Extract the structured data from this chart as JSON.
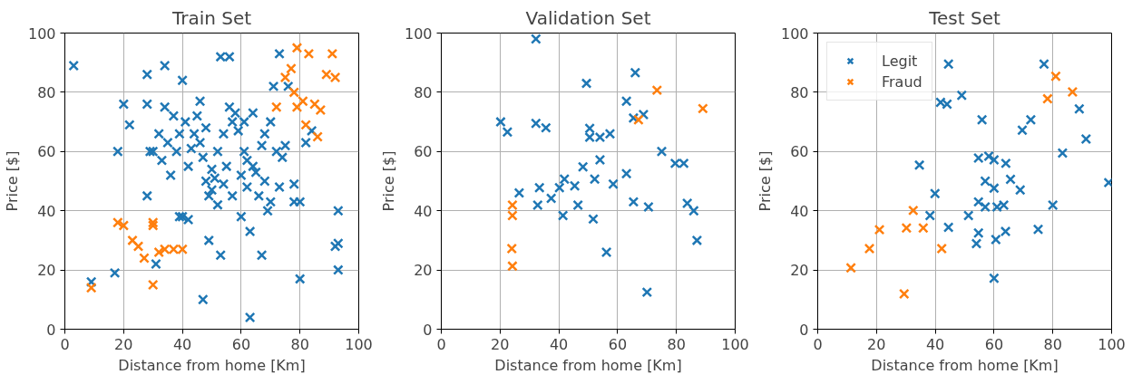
{
  "chart_data": [
    {
      "type": "scatter",
      "title": "Train Set",
      "xlabel": "Distance from home [Km]",
      "ylabel": "Price [$]",
      "xlim": [
        0,
        100
      ],
      "ylim": [
        0,
        100
      ],
      "xticks": [
        0,
        20,
        40,
        60,
        80,
        100
      ],
      "yticks": [
        0,
        20,
        40,
        60,
        80,
        100
      ],
      "grid": true,
      "marker": "cross",
      "series": [
        {
          "color": "#1f77b4",
          "x": [
            3,
            9,
            17,
            18,
            20,
            22,
            28,
            28,
            28,
            29,
            30,
            31,
            32,
            33,
            34,
            34,
            35,
            36,
            37,
            38,
            39,
            39,
            40,
            40,
            41,
            42,
            42,
            43,
            44,
            45,
            46,
            46,
            47,
            47,
            48,
            48,
            49,
            49,
            50,
            50,
            51,
            52,
            52,
            53,
            53,
            54,
            54,
            55,
            56,
            56,
            57,
            57,
            58,
            59,
            60,
            60,
            61,
            61,
            62,
            62,
            63,
            63,
            64,
            64,
            65,
            66,
            67,
            67,
            68,
            68,
            69,
            70,
            70,
            71,
            72,
            73,
            73,
            74,
            75,
            76,
            78,
            78,
            80,
            80,
            82,
            84,
            86,
            92,
            93,
            93,
            93
          ],
          "values": [
            89,
            16,
            19,
            60,
            76,
            69,
            86,
            76,
            45,
            60,
            60,
            22,
            66,
            57,
            89,
            75,
            63,
            52,
            72,
            60,
            66,
            38,
            38,
            84,
            70,
            55,
            37,
            61,
            66,
            72,
            77,
            63,
            58,
            10,
            68,
            50,
            45,
            30,
            54,
            47,
            51,
            60,
            42,
            92,
            25,
            49,
            66,
            55,
            92,
            75,
            70,
            45,
            73,
            67,
            38,
            52,
            70,
            60,
            48,
            57,
            33,
            4,
            55,
            73,
            53,
            45,
            25,
            62,
            50,
            66,
            40,
            70,
            43,
            82,
            60,
            48,
            93,
            58,
            62,
            82,
            43,
            49,
            17,
            43,
            63,
            67,
            null,
            28,
            40,
            20,
            29
          ]
        },
        {
          "color": "#ff7f0e",
          "x": [
            9,
            18,
            20,
            23,
            25,
            27,
            30,
            30,
            30,
            32,
            34,
            37,
            40,
            72,
            75,
            77,
            78,
            79,
            82,
            83,
            85,
            87,
            86,
            89,
            91,
            92,
            79,
            81
          ],
          "values": [
            14,
            36,
            35,
            30,
            28,
            24,
            36,
            35,
            15,
            26,
            27,
            27,
            27,
            75,
            85,
            88,
            80,
            95,
            69,
            93,
            76,
            74,
            65,
            86,
            93,
            85,
            75,
            77
          ]
        }
      ]
    },
    {
      "type": "scatter",
      "title": "Validation Set",
      "xlabel": "Distance from home [Km]",
      "ylabel": "Price [$]",
      "xlim": [
        0,
        100
      ],
      "ylim": [
        0,
        100
      ],
      "xticks": [
        0,
        20,
        40,
        60,
        80,
        100
      ],
      "yticks": [
        0,
        20,
        40,
        60,
        80,
        100
      ],
      "grid": true,
      "marker": "cross",
      "series": [
        {
          "color": "#1f77b4",
          "x": [
            20.2,
            22.5,
            32.2,
            32.2,
            35.6,
            49.4,
            50.5,
            50.5,
            54,
            57.4,
            63,
            66,
            65.4,
            68.8,
            75,
            79.6,
            82.5,
            83.7,
            85.9,
            87,
            70,
            65.4,
            70.5,
            63,
            58.5,
            54,
            52.2,
            51.7,
            56.2,
            48.2,
            45.4,
            41.9,
            41.4,
            40.2,
            37.4,
            33.4,
            32.8,
            26.5,
            46.5
          ],
          "values": [
            70,
            66.6,
            98,
            69.5,
            68,
            83,
            67.8,
            64.8,
            64.8,
            66,
            77,
            86.6,
            71.3,
            72.5,
            60,
            56,
            56,
            42.5,
            40,
            30,
            12.5,
            43,
            41.3,
            52.5,
            49,
            57.2,
            50.7,
            37.2,
            26,
            54.8,
            48.4,
            50.7,
            38.4,
            47.8,
            44.2,
            47.8,
            41.9,
            46,
            41.9
          ]
        },
        {
          "color": "#ff7f0e",
          "x": [
            24.2,
            24.2,
            24,
            24.2,
            67.1,
            73.4,
            89
          ],
          "values": [
            41.9,
            38.4,
            27.2,
            21.3,
            70.7,
            80.7,
            74.5
          ]
        }
      ]
    },
    {
      "type": "scatter",
      "title": "Test Set",
      "xlabel": "Distance from home [Km]",
      "ylabel": "Price [$]",
      "xlim": [
        0,
        100
      ],
      "ylim": [
        0,
        100
      ],
      "xticks": [
        0,
        20,
        40,
        60,
        80,
        100
      ],
      "yticks": [
        0,
        20,
        40,
        60,
        80,
        100
      ],
      "grid": true,
      "marker": "cross",
      "legend": "top left",
      "series": [
        {
          "name": "Legit",
          "color": "#1f77b4",
          "x": [
            44.5,
            41.8,
            44,
            49,
            55.9,
            69.6,
            72.5,
            77,
            89,
            91.3,
            83.3,
            99,
            54.7,
            58.2,
            60,
            64,
            57,
            65.6,
            68.9,
            60,
            54.7,
            51.3,
            57,
            61,
            63.3,
            80,
            75,
            63.9,
            60.6,
            54.7,
            54,
            60,
            44.5,
            39.9,
            38.2,
            34.6
          ],
          "values": [
            89.5,
            76.6,
            76,
            79,
            70.7,
            67.2,
            70.7,
            89.5,
            74.4,
            64.2,
            59.5,
            49.5,
            57.8,
            58.4,
            57.2,
            56,
            50,
            50.6,
            47,
            47.6,
            43,
            38.4,
            41.3,
            41.3,
            41.9,
            41.9,
            33.7,
            33,
            30.3,
            32.5,
            28.9,
            17.2,
            34.4,
            45.8,
            38.4,
            55.4
          ]
        },
        {
          "name": "Fraud",
          "color": "#ff7f0e",
          "x": [
            11.3,
            17.6,
            21,
            29.4,
            30.2,
            32.5,
            35.9,
            42.2,
            78.2,
            81,
            86.7
          ],
          "values": [
            20.7,
            27.2,
            33.6,
            11.9,
            34.2,
            40.1,
            34.2,
            27.2,
            77.8,
            85.4,
            80.1
          ]
        }
      ]
    }
  ]
}
